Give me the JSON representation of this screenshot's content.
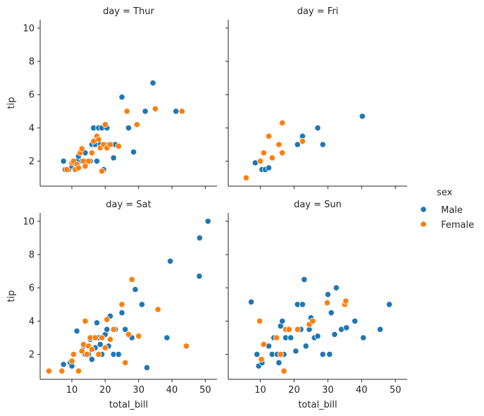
{
  "chart_data": {
    "type": "scatter",
    "facet_variable": "day",
    "xlabel": "total_bill",
    "ylabel": "tip",
    "xlim": [
      0.5,
      53.5
    ],
    "ylim": [
      0.5,
      10.5
    ],
    "xticks": [
      10,
      20,
      30,
      40,
      50
    ],
    "yticks": [
      2,
      4,
      6,
      8,
      10
    ],
    "legend_title": "sex",
    "legend_position": "right",
    "grid": false,
    "series": [
      {
        "name": "Male",
        "color": "#1f77b4"
      },
      {
        "name": "Female",
        "color": "#ff7f0e"
      }
    ],
    "panels": [
      {
        "title": "day = Thur",
        "Male": [
          [
            7.5,
            2.0
          ],
          [
            8.0,
            1.5
          ],
          [
            9.0,
            1.5
          ],
          [
            10.0,
            1.7
          ],
          [
            10.5,
            1.9
          ],
          [
            11.5,
            2.0
          ],
          [
            12.0,
            2.3
          ],
          [
            13.0,
            2.0
          ],
          [
            13.5,
            2.0
          ],
          [
            14.0,
            2.5
          ],
          [
            15.0,
            2.0
          ],
          [
            15.5,
            2.0
          ],
          [
            16.0,
            3.0
          ],
          [
            16.5,
            4.0
          ],
          [
            17.0,
            3.0
          ],
          [
            17.5,
            2.0
          ],
          [
            18.0,
            4.0
          ],
          [
            18.5,
            3.0
          ],
          [
            19.0,
            4.0
          ],
          [
            19.5,
            1.5
          ],
          [
            20.5,
            4.0
          ],
          [
            21.0,
            3.0
          ],
          [
            22.0,
            3.0
          ],
          [
            22.5,
            2.2
          ],
          [
            23.0,
            3.0
          ],
          [
            25.0,
            5.85
          ],
          [
            27.0,
            4.0
          ],
          [
            28.5,
            2.55
          ],
          [
            32.0,
            5.0
          ],
          [
            34.3,
            6.7
          ],
          [
            41.2,
            5.0
          ]
        ],
        "Female": [
          [
            8.5,
            1.5
          ],
          [
            10.0,
            1.9
          ],
          [
            10.5,
            2.0
          ],
          [
            11.0,
            1.5
          ],
          [
            11.5,
            1.8
          ],
          [
            12.0,
            1.6
          ],
          [
            12.5,
            2.5
          ],
          [
            13.0,
            2.75
          ],
          [
            13.5,
            2.0
          ],
          [
            14.0,
            1.7
          ],
          [
            15.0,
            2.0
          ],
          [
            16.0,
            2.5
          ],
          [
            16.5,
            3.2
          ],
          [
            17.5,
            3.5
          ],
          [
            18.0,
            3.3
          ],
          [
            18.5,
            2.8
          ],
          [
            19.0,
            1.4
          ],
          [
            19.5,
            3.0
          ],
          [
            20.0,
            4.2
          ],
          [
            20.5,
            2.8
          ],
          [
            21.5,
            3.0
          ],
          [
            24.0,
            2.9
          ],
          [
            26.5,
            5.0
          ],
          [
            29.5,
            4.2
          ],
          [
            35.0,
            5.15
          ],
          [
            43.0,
            5.0
          ]
        ]
      },
      {
        "title": "day = Fri",
        "Male": [
          [
            8.5,
            1.9
          ],
          [
            10.5,
            1.5
          ],
          [
            11.5,
            1.5
          ],
          [
            12.5,
            1.6
          ],
          [
            15.5,
            3.0
          ],
          [
            21.0,
            3.0
          ],
          [
            22.5,
            3.5
          ],
          [
            27.0,
            4.0
          ],
          [
            28.5,
            3.0
          ],
          [
            40.2,
            4.7
          ]
        ],
        "Female": [
          [
            5.8,
            1.0
          ],
          [
            10.0,
            2.0
          ],
          [
            11.0,
            2.5
          ],
          [
            12.5,
            3.5
          ],
          [
            13.5,
            2.2
          ],
          [
            15.5,
            3.0
          ],
          [
            16.5,
            4.3
          ],
          [
            16.5,
            2.5
          ],
          [
            22.5,
            3.2
          ]
        ]
      },
      {
        "title": "day = Sat",
        "Male": [
          [
            7.5,
            1.4
          ],
          [
            9.5,
            1.5
          ],
          [
            10.0,
            1.3
          ],
          [
            11.5,
            3.4
          ],
          [
            12.0,
            1.0
          ],
          [
            13.5,
            2.5
          ],
          [
            14.0,
            2.0
          ],
          [
            15.0,
            2.0
          ],
          [
            15.5,
            2.9
          ],
          [
            16.0,
            1.7
          ],
          [
            16.5,
            3.0
          ],
          [
            17.0,
            2.4
          ],
          [
            17.5,
            3.9
          ],
          [
            18.0,
            3.0
          ],
          [
            18.5,
            2.6
          ],
          [
            19.0,
            2.0
          ],
          [
            20.0,
            3.2
          ],
          [
            20.5,
            3.5
          ],
          [
            21.0,
            2.5
          ],
          [
            21.5,
            4.3
          ],
          [
            22.5,
            2.0
          ],
          [
            23.0,
            3.5
          ],
          [
            24.0,
            2.0
          ],
          [
            25.0,
            4.5
          ],
          [
            26.0,
            3.5
          ],
          [
            28.0,
            3.0
          ],
          [
            29.0,
            5.9
          ],
          [
            31.0,
            5.0
          ],
          [
            32.5,
            1.2
          ],
          [
            38.5,
            3.0
          ],
          [
            39.5,
            7.6
          ],
          [
            48.2,
            6.7
          ],
          [
            48.3,
            9.0
          ],
          [
            50.8,
            10.0
          ]
        ],
        "Female": [
          [
            3.1,
            1.0
          ],
          [
            7.0,
            1.0
          ],
          [
            10.0,
            1.6
          ],
          [
            10.5,
            2.0
          ],
          [
            12.0,
            1.0
          ],
          [
            13.0,
            2.2
          ],
          [
            13.5,
            2.6
          ],
          [
            14.0,
            4.0
          ],
          [
            14.5,
            2.0
          ],
          [
            15.0,
            2.5
          ],
          [
            15.5,
            3.0
          ],
          [
            16.0,
            2.3
          ],
          [
            17.0,
            3.0
          ],
          [
            18.0,
            2.0
          ],
          [
            19.0,
            3.0
          ],
          [
            20.0,
            2.4
          ],
          [
            20.5,
            4.1
          ],
          [
            21.5,
            2.9
          ],
          [
            22.5,
            3.5
          ],
          [
            25.0,
            5.0
          ],
          [
            26.0,
            1.5
          ],
          [
            27.0,
            3.2
          ],
          [
            28.0,
            6.5
          ],
          [
            30.0,
            3.1
          ],
          [
            35.8,
            4.7
          ],
          [
            44.3,
            2.5
          ]
        ]
      },
      {
        "title": "day = Sun",
        "Male": [
          [
            7.3,
            5.15
          ],
          [
            9.0,
            2.0
          ],
          [
            9.5,
            1.3
          ],
          [
            10.5,
            1.5
          ],
          [
            12.5,
            2.5
          ],
          [
            13.5,
            2.0
          ],
          [
            14.0,
            3.0
          ],
          [
            15.0,
            2.0
          ],
          [
            15.5,
            1.5
          ],
          [
            16.0,
            3.7
          ],
          [
            16.5,
            4.0
          ],
          [
            17.0,
            2.0
          ],
          [
            17.5,
            3.0
          ],
          [
            18.0,
            3.5
          ],
          [
            19.0,
            3.0
          ],
          [
            20.5,
            2.2
          ],
          [
            21.0,
            5.0
          ],
          [
            22.0,
            3.5
          ],
          [
            22.5,
            5.0
          ],
          [
            23.0,
            6.5
          ],
          [
            23.5,
            2.5
          ],
          [
            24.5,
            3.5
          ],
          [
            25.0,
            4.2
          ],
          [
            26.0,
            3.0
          ],
          [
            27.0,
            3.1
          ],
          [
            28.5,
            2.0
          ],
          [
            30.0,
            5.6
          ],
          [
            30.5,
            2.0
          ],
          [
            31.0,
            4.5
          ],
          [
            32.0,
            3.2
          ],
          [
            32.5,
            6.0
          ],
          [
            34.0,
            3.5
          ],
          [
            35.5,
            3.6
          ],
          [
            38.0,
            4.0
          ],
          [
            40.5,
            3.0
          ],
          [
            45.5,
            3.5
          ],
          [
            48.2,
            5.0
          ]
        ],
        "Female": [
          [
            9.8,
            4.0
          ],
          [
            10.3,
            1.7
          ],
          [
            11.0,
            2.6
          ],
          [
            14.8,
            3.0
          ],
          [
            16.0,
            2.0
          ],
          [
            17.0,
            1.0
          ],
          [
            17.5,
            3.5
          ],
          [
            18.5,
            3.5
          ],
          [
            21.0,
            3.5
          ],
          [
            24.5,
            3.8
          ],
          [
            25.5,
            4.0
          ],
          [
            29.8,
            5.1
          ],
          [
            35.0,
            5.0
          ],
          [
            35.3,
            5.2
          ]
        ]
      }
    ]
  }
}
